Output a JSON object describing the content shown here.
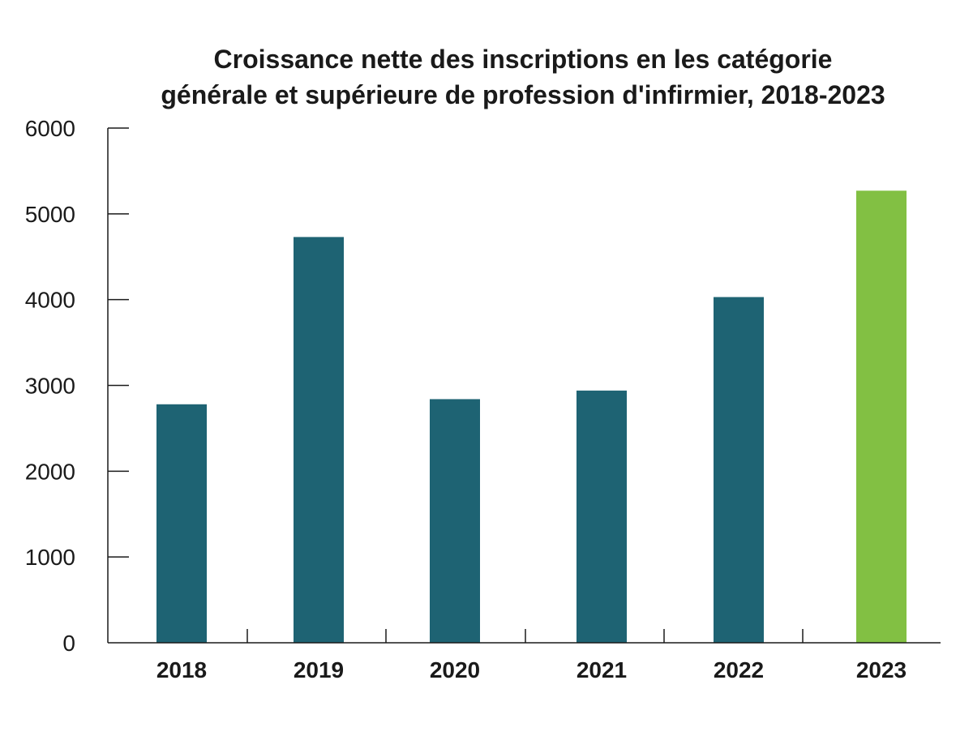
{
  "chart_data": {
    "type": "bar",
    "title_lines": [
      "Croissance nette des inscriptions en les catégorie",
      "générale et supérieure de profession d'infirmier, 2018-2023"
    ],
    "categories": [
      "2018",
      "2019",
      "2020",
      "2021",
      "2022",
      "2023"
    ],
    "values": [
      2780,
      4730,
      2840,
      2940,
      4030,
      5270
    ],
    "ylim": [
      0,
      6000
    ],
    "yticks": [
      0,
      1000,
      2000,
      3000,
      4000,
      5000,
      6000
    ],
    "ytick_labels": [
      "0",
      "1000",
      "2000",
      "3000",
      "4000",
      "5000",
      "6000"
    ],
    "xlabel": "",
    "ylabel": "",
    "grid": false,
    "colors": {
      "default_bar": "#1e6373",
      "highlight_bar": "#82c043",
      "axis": "#1a1a1a",
      "text": "#1a1a1a"
    },
    "highlight_category": "2023"
  }
}
